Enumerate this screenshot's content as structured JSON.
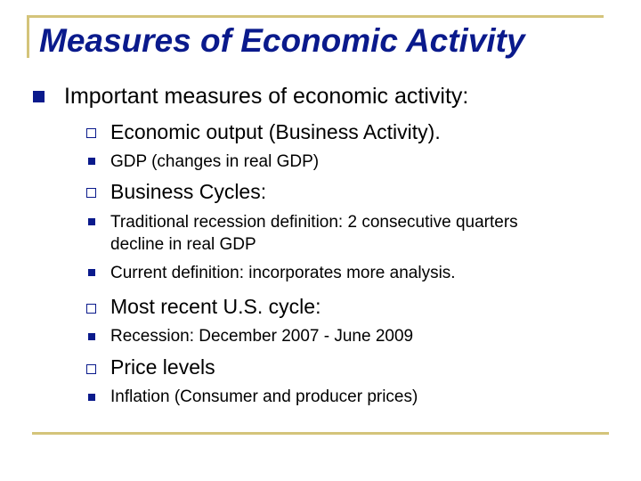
{
  "slide": {
    "title": "Measures of Economic Activity",
    "level1": "Important measures of economic activity:",
    "sections": [
      {
        "heading": "Economic output (Business Activity).",
        "items": [
          "GDP (changes in real GDP)"
        ]
      },
      {
        "heading": "Business Cycles:",
        "items": [
          "Traditional recession definition: 2 consecutive quarters",
          "decline in real GDP",
          "Current definition: incorporates more analysis."
        ]
      },
      {
        "heading": "Most recent U.S. cycle:",
        "items": [
          "Recession: December 2007 - June 2009"
        ]
      },
      {
        "heading": "Price levels",
        "items": [
          "Inflation (Consumer and producer prices)"
        ]
      }
    ]
  },
  "colors": {
    "title": "#0a1a8c",
    "bullet": "#0a1a8c",
    "rule": "#d4c47a"
  }
}
